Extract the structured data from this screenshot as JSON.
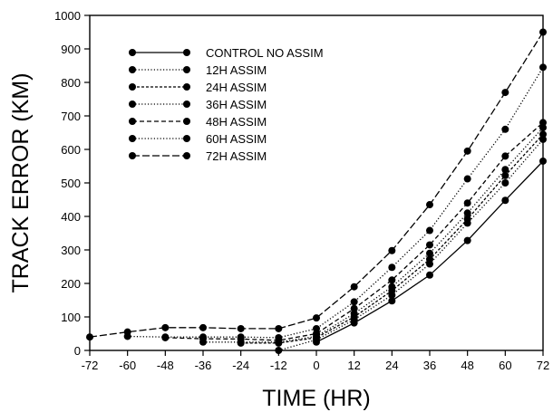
{
  "chart_data": {
    "type": "line",
    "title": "",
    "xlabel": "TIME (HR)",
    "ylabel": "TRACK ERROR (KM)",
    "xlim": [
      -72,
      72
    ],
    "ylim": [
      0,
      1000
    ],
    "x": [
      -72,
      -60,
      -48,
      -36,
      -24,
      -12,
      0,
      12,
      24,
      36,
      48,
      60,
      72
    ],
    "xticks": [
      "-72",
      "-60",
      "-48",
      "-36",
      "-24",
      "-12",
      "0",
      "12",
      "24",
      "36",
      "48",
      "60",
      "72"
    ],
    "yticks": [
      "0",
      "100",
      "200",
      "300",
      "400",
      "500",
      "600",
      "700",
      "800",
      "900",
      "1000"
    ],
    "grid": false,
    "legend_position": "top-left",
    "series": [
      {
        "name": "CONTROL NO ASSIM",
        "dash": "solid",
        "values": [
          null,
          null,
          null,
          null,
          null,
          null,
          25,
          82,
          148,
          225,
          328,
          448,
          565
        ]
      },
      {
        "name": "12H ASSIM",
        "dash": "dotted",
        "values": [
          null,
          null,
          null,
          null,
          null,
          -12,
          32,
          92,
          165,
          258,
          380,
          500,
          630
        ]
      },
      {
        "name": "24H ASSIM",
        "dash": "short",
        "values": [
          null,
          null,
          null,
          null,
          22,
          22,
          38,
          100,
          178,
          272,
          392,
          522,
          645
        ]
      },
      {
        "name": "36H ASSIM",
        "dash": "dotted",
        "values": [
          null,
          null,
          null,
          25,
          25,
          25,
          42,
          110,
          190,
          290,
          410,
          540,
          665
        ]
      },
      {
        "name": "48H ASSIM",
        "dash": "medium",
        "values": [
          null,
          null,
          38,
          35,
          34,
          30,
          50,
          125,
          210,
          315,
          440,
          580,
          680
        ]
      },
      {
        "name": "60H ASSIM",
        "dash": "dotted",
        "values": [
          null,
          42,
          40,
          40,
          40,
          38,
          65,
          145,
          248,
          358,
          512,
          660,
          845
        ]
      },
      {
        "name": "72H ASSIM",
        "dash": "long",
        "values": [
          40,
          55,
          68,
          68,
          65,
          65,
          97,
          190,
          298,
          435,
          595,
          770,
          950
        ]
      }
    ]
  }
}
